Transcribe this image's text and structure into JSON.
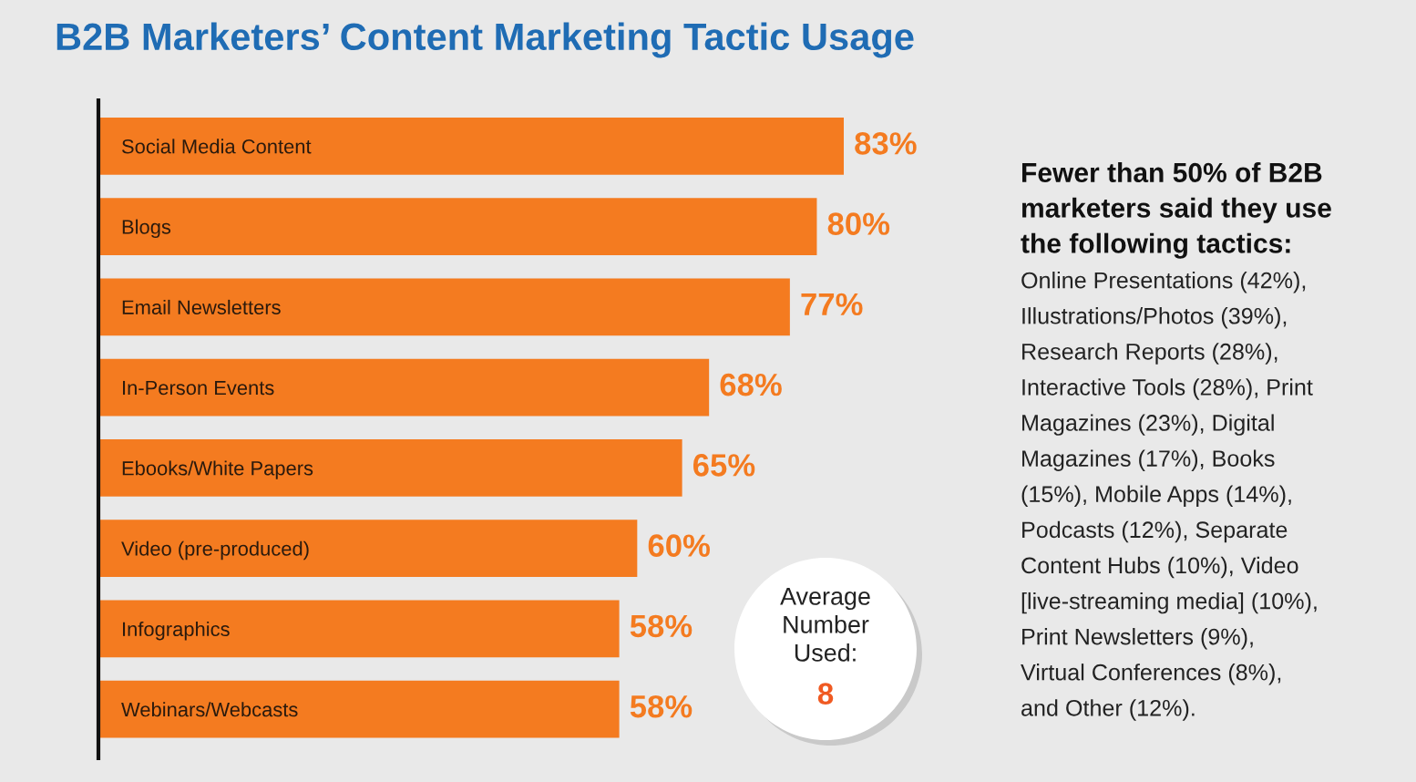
{
  "chart_data": {
    "type": "bar",
    "orientation": "horizontal",
    "title": "B2B Marketers’ Content Marketing Tactic Usage",
    "categories": [
      "Social Media Content",
      "Blogs",
      "Email Newsletters",
      "In-Person Events",
      "Ebooks/White Papers",
      "Video (pre-produced)",
      "Infographics",
      "Webinars/Webcasts"
    ],
    "values": [
      83,
      80,
      77,
      68,
      65,
      60,
      58,
      58
    ],
    "value_labels": [
      "83%",
      "80%",
      "77%",
      "68%",
      "65%",
      "60%",
      "58%",
      "58%"
    ],
    "color": "#f47b20",
    "annotations": [
      "Fewer than 50% of B2B\nmarketers said they use\nthe following tactics:",
      "Online Presentations (42%),\nIllustrations/Photos (39%),\nResearch Reports (28%),\nInteractive Tools (28%), Print\nMagazines (23%), Digital\nMagazines (17%), Books\n(15%), Mobile Apps (14%),\nPodcasts (12%), Separate\nContent Hubs (10%), Video\n[live-streaming media] (10%),\nPrint Newsletters (9%),\nVirtual Conferences (8%),\nand Other (12%).",
      "Average\nNumber\nUsed:",
      "8"
    ]
  }
}
